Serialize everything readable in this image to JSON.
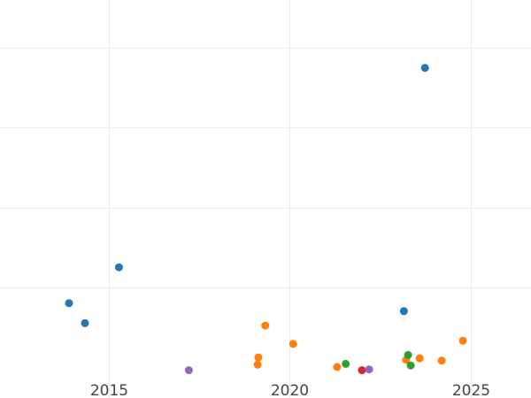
{
  "chart_data": {
    "type": "scatter",
    "x_axis": {
      "type": "date",
      "range": [
        "2012-01-01",
        "2026-09-01"
      ],
      "tick_labels": [
        "2015",
        "2020",
        "2025"
      ],
      "tick_values": [
        "2015-01-01",
        "2020-01-01",
        "2025-01-01"
      ],
      "grid": true
    },
    "y_axis": {
      "range": [
        -0.1,
        4.6
      ],
      "gridlines": [
        1,
        2,
        3,
        4
      ],
      "grid": true,
      "tick_labels_shown": false
    },
    "series": [
      {
        "color": "#1f77b4",
        "points": [
          {
            "x": "2013-11-27",
            "y": 0.8
          },
          {
            "x": "2014-05-07",
            "y": 0.55
          },
          {
            "x": "2015-04-15",
            "y": 1.25
          },
          {
            "x": "2023-02-26",
            "y": 0.7
          },
          {
            "x": "2023-09-27",
            "y": 3.75
          }
        ]
      },
      {
        "color": "#ff7f0e",
        "points": [
          {
            "x": "2019-02-12",
            "y": 0.03
          },
          {
            "x": "2019-02-19",
            "y": 0.12
          },
          {
            "x": "2019-04-30",
            "y": 0.52
          },
          {
            "x": "2020-02-06",
            "y": 0.29
          },
          {
            "x": "2021-04-24",
            "y": 0.0
          },
          {
            "x": "2023-03-21",
            "y": 0.09
          },
          {
            "x": "2023-08-05",
            "y": 0.11
          },
          {
            "x": "2024-03-14",
            "y": 0.08
          },
          {
            "x": "2024-10-14",
            "y": 0.33
          }
        ]
      },
      {
        "color": "#2ca02c",
        "points": [
          {
            "x": "2021-07-20",
            "y": 0.04
          },
          {
            "x": "2023-04-10",
            "y": 0.15
          },
          {
            "x": "2023-05-07",
            "y": 0.02
          }
        ]
      },
      {
        "color": "#d62728",
        "points": [
          {
            "x": "2021-12-31",
            "y": -0.04
          }
        ]
      },
      {
        "color": "#9467bd",
        "points": [
          {
            "x": "2017-03-20",
            "y": -0.04
          },
          {
            "x": "2022-03-13",
            "y": -0.03
          }
        ]
      }
    ]
  }
}
